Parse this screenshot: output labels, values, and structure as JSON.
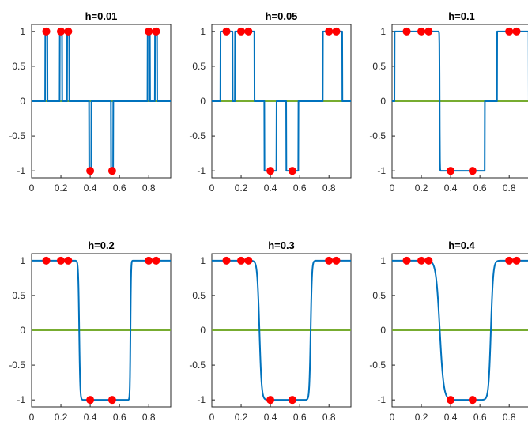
{
  "figure": {
    "colors": {
      "curve": "#0072BD",
      "zero_line": "#77AC30",
      "points": "#FF0000",
      "axes": "#262626"
    }
  },
  "chart_data": [
    {
      "type": "line",
      "title": "h=0.01",
      "h": 0.01,
      "xlim": [
        0,
        0.95
      ],
      "ylim": [
        -1.1,
        1.1
      ],
      "xticks": [
        0,
        0.2,
        0.4,
        0.6,
        0.8
      ],
      "xtick_labels": [
        "0",
        "0.2",
        "0.4",
        "0.6",
        "0.8"
      ],
      "yticks": [
        1,
        0.5,
        0,
        -0.5,
        -1
      ],
      "ytick_labels": [
        "1",
        "0.5",
        "0",
        "-0.5",
        "-1"
      ],
      "points": [
        {
          "x": 0.1,
          "y": 1
        },
        {
          "x": 0.2,
          "y": 1
        },
        {
          "x": 0.25,
          "y": 1
        },
        {
          "x": 0.4,
          "y": -1
        },
        {
          "x": 0.55,
          "y": -1
        },
        {
          "x": 0.8,
          "y": 1
        },
        {
          "x": 0.85,
          "y": 1
        }
      ],
      "grid": false
    },
    {
      "type": "line",
      "title": "h=0.05",
      "h": 0.05,
      "xlim": [
        0,
        0.95
      ],
      "ylim": [
        -1.1,
        1.1
      ],
      "xticks": [
        0,
        0.2,
        0.4,
        0.6,
        0.8
      ],
      "xtick_labels": [
        "0",
        "0.2",
        "0.4",
        "0.6",
        "0.8"
      ],
      "yticks": [
        1,
        0.5,
        0,
        -0.5,
        -1
      ],
      "ytick_labels": [
        "1",
        "0.5",
        "0",
        "-0.5",
        "-1"
      ],
      "points": [
        {
          "x": 0.1,
          "y": 1
        },
        {
          "x": 0.2,
          "y": 1
        },
        {
          "x": 0.25,
          "y": 1
        },
        {
          "x": 0.4,
          "y": -1
        },
        {
          "x": 0.55,
          "y": -1
        },
        {
          "x": 0.8,
          "y": 1
        },
        {
          "x": 0.85,
          "y": 1
        }
      ],
      "grid": false
    },
    {
      "type": "line",
      "title": "h=0.1",
      "h": 0.1,
      "xlim": [
        0,
        0.95
      ],
      "ylim": [
        -1.1,
        1.1
      ],
      "xticks": [
        0,
        0.2,
        0.4,
        0.6,
        0.8
      ],
      "xtick_labels": [
        "0",
        "0.2",
        "0.4",
        "0.6",
        "0.8"
      ],
      "yticks": [
        1,
        0.5,
        0,
        -0.5,
        -1
      ],
      "ytick_labels": [
        "1",
        "0.5",
        "0",
        "-0.5",
        "-1"
      ],
      "points": [
        {
          "x": 0.1,
          "y": 1
        },
        {
          "x": 0.2,
          "y": 1
        },
        {
          "x": 0.25,
          "y": 1
        },
        {
          "x": 0.4,
          "y": -1
        },
        {
          "x": 0.55,
          "y": -1
        },
        {
          "x": 0.8,
          "y": 1
        },
        {
          "x": 0.85,
          "y": 1
        }
      ],
      "grid": false
    },
    {
      "type": "line",
      "title": "h=0.2",
      "h": 0.2,
      "xlim": [
        0,
        0.95
      ],
      "ylim": [
        -1.1,
        1.1
      ],
      "xticks": [
        0,
        0.2,
        0.4,
        0.6,
        0.8
      ],
      "xtick_labels": [
        "0",
        "0.2",
        "0.4",
        "0.6",
        "0.8"
      ],
      "yticks": [
        1,
        0.5,
        0,
        -0.5,
        -1
      ],
      "ytick_labels": [
        "1",
        "0.5",
        "0",
        "-0.5",
        "-1"
      ],
      "points": [
        {
          "x": 0.1,
          "y": 1
        },
        {
          "x": 0.2,
          "y": 1
        },
        {
          "x": 0.25,
          "y": 1
        },
        {
          "x": 0.4,
          "y": -1
        },
        {
          "x": 0.55,
          "y": -1
        },
        {
          "x": 0.8,
          "y": 1
        },
        {
          "x": 0.85,
          "y": 1
        }
      ],
      "grid": false
    },
    {
      "type": "line",
      "title": "h=0.3",
      "h": 0.3,
      "xlim": [
        0,
        0.95
      ],
      "ylim": [
        -1.1,
        1.1
      ],
      "xticks": [
        0,
        0.2,
        0.4,
        0.6,
        0.8
      ],
      "xtick_labels": [
        "0",
        "0.2",
        "0.4",
        "0.6",
        "0.8"
      ],
      "yticks": [
        1,
        0.5,
        0,
        -0.5,
        -1
      ],
      "ytick_labels": [
        "1",
        "0.5",
        "0",
        "-0.5",
        "-1"
      ],
      "points": [
        {
          "x": 0.1,
          "y": 1
        },
        {
          "x": 0.2,
          "y": 1
        },
        {
          "x": 0.25,
          "y": 1
        },
        {
          "x": 0.4,
          "y": -1
        },
        {
          "x": 0.55,
          "y": -1
        },
        {
          "x": 0.8,
          "y": 1
        },
        {
          "x": 0.85,
          "y": 1
        }
      ],
      "grid": false
    },
    {
      "type": "line",
      "title": "h=0.4",
      "h": 0.4,
      "xlim": [
        0,
        0.95
      ],
      "ylim": [
        -1.1,
        1.1
      ],
      "xticks": [
        0,
        0.2,
        0.4,
        0.6,
        0.8
      ],
      "xtick_labels": [
        "0",
        "0.2",
        "0.4",
        "0.6",
        "0.8"
      ],
      "yticks": [
        1,
        0.5,
        0,
        -0.5,
        -1
      ],
      "ytick_labels": [
        "1",
        "0.5",
        "0",
        "-0.5",
        "-1"
      ],
      "points": [
        {
          "x": 0.1,
          "y": 1
        },
        {
          "x": 0.2,
          "y": 1
        },
        {
          "x": 0.25,
          "y": 1
        },
        {
          "x": 0.4,
          "y": -1
        },
        {
          "x": 0.55,
          "y": -1
        },
        {
          "x": 0.8,
          "y": 1
        },
        {
          "x": 0.85,
          "y": 1
        }
      ],
      "grid": false
    }
  ]
}
